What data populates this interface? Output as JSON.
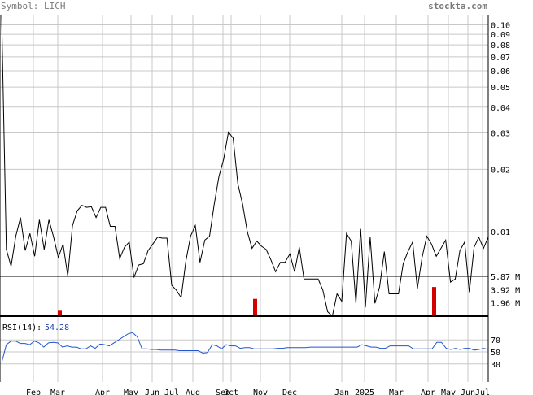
{
  "header": {
    "symbol_label": "Symbol: LICH",
    "watermark": "stockta.com"
  },
  "colors": {
    "grid": "#c8c8c8",
    "price_line": "#000000",
    "volume_up": "#2a8a2a",
    "volume_down": "#d40000",
    "rsi_line": "#2255cc",
    "rsi_value": "#1a3fb0",
    "header_text": "#7a7a7a"
  },
  "chart_data": [
    {
      "type": "line",
      "title": "Symbol: LICH",
      "y_scale": "log",
      "ylim": [
        0.0039,
        0.112
      ],
      "yticks": [
        0.1,
        0.09,
        0.08,
        0.07,
        0.06,
        0.05,
        0.04,
        0.03,
        0.02,
        0.01
      ],
      "ytick_labels": [
        "0.10",
        "0.09",
        "0.08",
        "0.07",
        "0.06",
        "0.05",
        "0.04",
        "0.03",
        "0.02",
        "0.01"
      ],
      "x_tick_labels": [
        "Feb",
        "Mar",
        "Apr",
        "May",
        "Jun",
        "Jul",
        "Aug",
        "Sep",
        "Oct",
        "Nov",
        "Dec",
        "Jan",
        "2025",
        "Mar",
        "Apr",
        "May",
        "Jun",
        "Jul"
      ],
      "grid": true,
      "series": [
        {
          "values": [
            0.112,
            0.0082,
            0.0068,
            0.0095,
            0.0117,
            0.0081,
            0.0098,
            0.0076,
            0.0114,
            0.0082,
            0.0114,
            0.0094,
            0.0075,
            0.0087,
            0.0061,
            0.0107,
            0.0126,
            0.0134,
            0.0131,
            0.0132,
            0.0117,
            0.0131,
            0.0131,
            0.0106,
            0.0106,
            0.0074,
            0.0084,
            0.0089,
            0.006,
            0.0069,
            0.007,
            0.0081,
            0.0087,
            0.0094,
            0.0093,
            0.0093,
            0.0055,
            0.0052,
            0.0048,
            0.0072,
            0.0095,
            0.0107,
            0.0071,
            0.0091,
            0.0095,
            0.0136,
            0.0185,
            0.0224,
            0.0303,
            0.0283,
            0.017,
            0.0136,
            0.01,
            0.0083,
            0.009,
            0.0085,
            0.0082,
            0.0073,
            0.0064,
            0.0071,
            0.0071,
            0.0078,
            0.0064,
            0.0084,
            0.0059,
            0.0059,
            0.0059,
            0.0059,
            0.0052,
            0.0041,
            0.0039,
            0.005,
            0.0046,
            0.0098,
            0.009,
            0.0045,
            0.0103,
            0.0043,
            0.0094,
            0.0045,
            0.0054,
            0.008,
            0.005,
            0.005,
            0.005,
            0.007,
            0.008,
            0.0089,
            0.0053,
            0.0075,
            0.0095,
            0.0087,
            0.0076,
            0.0083,
            0.0091,
            0.0057,
            0.0059,
            0.0081,
            0.0089,
            0.0051,
            0.0084,
            0.0094,
            0.0083,
            0.0094
          ]
        }
      ]
    },
    {
      "type": "bar",
      "title": "",
      "ytick_labels": [
        "5.87 M",
        "3.92 M",
        "1.96 M"
      ],
      "ylim": [
        0,
        5.87
      ],
      "series": [
        {
          "name": "",
          "color": "down",
          "points": [
            [
              0.33,
              0.33
            ],
            [
              0.33,
              0.33
            ]
          ]
        }
      ],
      "bars": [
        {
          "x": 7,
          "v": 0.12,
          "c": "down"
        },
        {
          "x": 73,
          "v": 0.8,
          "c": "down"
        },
        {
          "x": 119,
          "v": 0.12,
          "c": "down"
        },
        {
          "x": 157,
          "v": 0.15,
          "c": "up"
        },
        {
          "x": 168,
          "v": 0.15,
          "c": "up"
        },
        {
          "x": 313,
          "v": 2.55,
          "c": "down"
        },
        {
          "x": 432,
          "v": 0.2,
          "c": "up"
        },
        {
          "x": 478,
          "v": 0.2,
          "c": "up"
        },
        {
          "x": 533,
          "v": 4.3,
          "c": "down"
        }
      ]
    },
    {
      "type": "line",
      "title": "RSI(14)",
      "indicator_label": "RSI(14):",
      "indicator_value": "54.28",
      "ylim": [
        0,
        100
      ],
      "yticks": [
        70,
        50,
        30
      ],
      "ytick_labels": [
        "70",
        "50",
        "30"
      ],
      "series": [
        {
          "values": [
            32,
            62,
            68,
            68,
            64,
            64,
            62,
            68,
            65,
            58,
            65,
            66,
            65,
            58,
            60,
            58,
            58,
            55,
            55,
            60,
            56,
            63,
            62,
            60,
            65,
            70,
            75,
            80,
            82,
            75,
            55,
            55,
            54,
            54,
            53,
            53,
            53,
            53,
            52,
            52,
            52,
            52,
            52,
            48,
            49,
            62,
            60,
            55,
            62,
            60,
            60,
            56,
            57,
            57,
            55,
            55,
            55,
            55,
            55,
            56,
            56,
            57,
            57,
            57,
            57,
            57,
            58,
            58,
            58,
            58,
            58,
            58,
            58,
            58,
            58,
            58,
            58,
            62,
            60,
            58,
            58,
            56,
            56,
            60,
            60,
            60,
            60,
            60,
            55,
            55,
            55,
            55,
            55,
            66,
            66,
            56,
            54,
            56,
            54,
            56,
            56,
            53,
            54,
            56,
            54
          ]
        }
      ]
    }
  ]
}
